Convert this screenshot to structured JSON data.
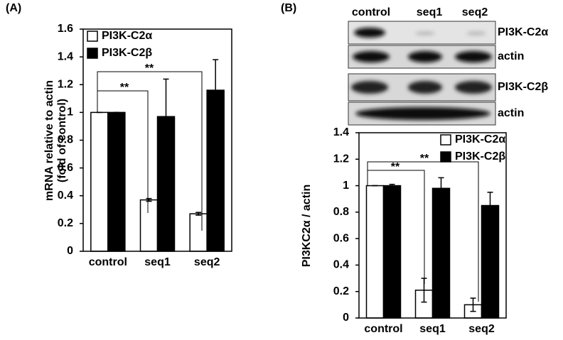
{
  "chart_data": [
    {
      "type": "bar",
      "panel": "(A)",
      "ylabel": [
        "mRNA relative to actin",
        "(fold of control)"
      ],
      "categories": [
        "control",
        "seq1",
        "seq2"
      ],
      "series": [
        {
          "name": "PI3K-C2α",
          "color": "#ffffff",
          "values": [
            1,
            0.37,
            0.27
          ],
          "errors": [
            0,
            0.01,
            0.01
          ]
        },
        {
          "name": "PI3K-C2β",
          "color": "#000000",
          "values": [
            1,
            0.97,
            1.16
          ],
          "errors": [
            0,
            0.27,
            0.22
          ]
        }
      ],
      "annotations": [
        "**",
        "**"
      ],
      "ylim": [
        0,
        1.6
      ],
      "yticks": [
        0,
        0.2,
        0.4,
        0.6,
        0.8,
        1,
        1.2,
        1.4,
        1.6
      ],
      "legend": "upper left"
    },
    {
      "type": "bar",
      "panel": "(B)",
      "ylabel": [
        "PI3KC2α / actin"
      ],
      "categories": [
        "control",
        "seq1",
        "seq2"
      ],
      "series": [
        {
          "name": "PI3K-C2α",
          "color": "#ffffff",
          "values": [
            1,
            0.21,
            0.1
          ],
          "errors": [
            0,
            0.09,
            0.05
          ]
        },
        {
          "name": "PI3K-C2β",
          "color": "#000000",
          "values": [
            1,
            0.98,
            0.85
          ],
          "errors": [
            0.01,
            0.08,
            0.1
          ]
        }
      ],
      "annotations": [
        "**",
        "**"
      ],
      "ylim": [
        0,
        1.4
      ],
      "yticks": [
        0,
        0.2,
        0.4,
        0.6,
        0.8,
        1,
        1.2,
        1.4
      ],
      "legend": "upper right"
    }
  ],
  "blot": {
    "lanes": [
      "control",
      "seq1",
      "seq2"
    ],
    "rows": [
      "PI3K-C2α",
      "actin",
      "PI3K-C2β",
      "actin"
    ]
  }
}
